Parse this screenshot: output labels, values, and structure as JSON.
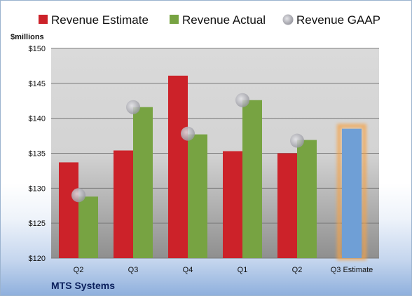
{
  "chart_data": {
    "type": "bar",
    "title": "MTS Systems",
    "ylabel": "$millions",
    "ylim": [
      120,
      150
    ],
    "yticks": [
      "$120",
      "$125",
      "$130",
      "$135",
      "$140",
      "$145",
      "$150"
    ],
    "categories": [
      "Q2",
      "Q3",
      "Q4",
      "Q1",
      "Q2",
      "Q3 Estimate"
    ],
    "series": [
      {
        "name": "Revenue Estimate",
        "type": "bar",
        "color": "#cc2229",
        "values": [
          133.7,
          135.4,
          146.1,
          135.3,
          135.0,
          null
        ]
      },
      {
        "name": "Revenue Actual",
        "type": "bar",
        "color": "#77a342",
        "values": [
          128.8,
          141.6,
          137.7,
          142.6,
          136.9,
          null
        ]
      },
      {
        "name": "Revenue GAAP",
        "type": "scatter",
        "color": "#bfbfc4",
        "values": [
          129.0,
          141.6,
          137.8,
          142.6,
          136.8,
          null
        ]
      },
      {
        "name": "",
        "type": "bar",
        "color": "#6f9fd6",
        "highlight": "#f5a347",
        "values": [
          null,
          null,
          null,
          null,
          null,
          138.5
        ]
      }
    ],
    "legend": "top",
    "grid": true
  }
}
